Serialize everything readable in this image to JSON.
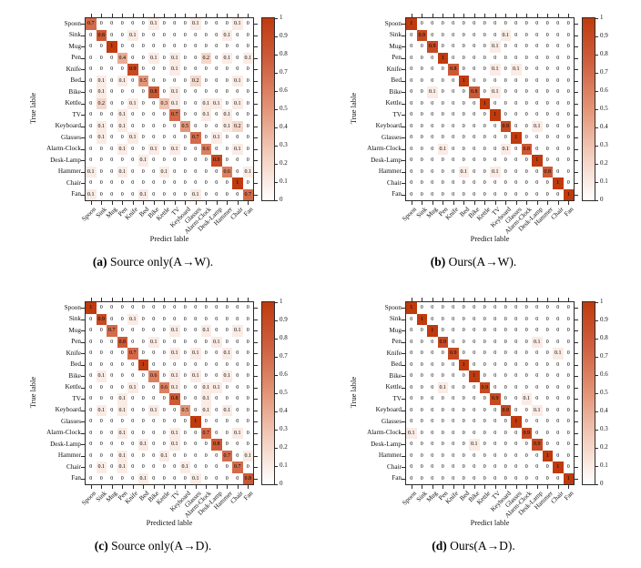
{
  "page": {
    "background": "#ffffff"
  },
  "class_labels": [
    "Spoon",
    "Sink",
    "Mug",
    "Pen",
    "Knife",
    "Bed",
    "Bike",
    "Kettle",
    "TV",
    "Keyboard",
    "Glasses",
    "Alarm-Clock",
    "Desk-Lamp",
    "Hammer",
    "Chair",
    "Fan"
  ],
  "colorbar": {
    "tick_labels": [
      "1",
      "0.9",
      "0.8",
      "0.7",
      "0.6",
      "0.5",
      "0.4",
      "0.3",
      "0.2",
      "0.1",
      "0"
    ],
    "high_color": "#bf3a0e",
    "low_color": "#ffffff"
  },
  "chart_data": [
    {
      "type": "heatmap",
      "title": "",
      "caption_bold": "(a)",
      "caption_text": "Source only(A→W).",
      "xlabel": "Predict lable",
      "ylabel": "True lable",
      "x_categories": [
        "Spoon",
        "Sink",
        "Mug",
        "Pen",
        "Knife",
        "Bed",
        "Bike",
        "Kettle",
        "TV",
        "Keyboard",
        "Glasses",
        "Alarm-Clock",
        "Desk-Lamp",
        "Hammer",
        "Chair",
        "Fan"
      ],
      "y_categories": [
        "Spoon",
        "Sink",
        "Mug",
        "Pen",
        "Knife",
        "Bed",
        "Bike",
        "Kettle",
        "TV",
        "Keyboard",
        "Glasses",
        "Alarm-Clock",
        "Desk-Lamp",
        "Hammer",
        "Chair",
        "Fan"
      ],
      "value_range": [
        0,
        1
      ],
      "matrix": [
        [
          0.7,
          0,
          0,
          0,
          0,
          0,
          0.1,
          0,
          0,
          0,
          0.1,
          0,
          0,
          0,
          0.1,
          0
        ],
        [
          0,
          0.8,
          0,
          0,
          0.1,
          0,
          0,
          0,
          0,
          0,
          0,
          0,
          0,
          0.1,
          0,
          0
        ],
        [
          0,
          0,
          1,
          0,
          0,
          0,
          0,
          0,
          0,
          0,
          0,
          0,
          0,
          0,
          0,
          0
        ],
        [
          0,
          0,
          0,
          0.4,
          0,
          0,
          0.1,
          0,
          0.1,
          0,
          0,
          0.2,
          0,
          0.1,
          0,
          0.1
        ],
        [
          0,
          0,
          0,
          0,
          0.9,
          0,
          0,
          0,
          0.1,
          0,
          0,
          0,
          0,
          0,
          0,
          0
        ],
        [
          0,
          0.1,
          0,
          0.1,
          0,
          0.5,
          0,
          0,
          0,
          0,
          0.2,
          0,
          0,
          0,
          0.1,
          0
        ],
        [
          0,
          0.1,
          0,
          0,
          0,
          0,
          0.8,
          0,
          0.1,
          0,
          0,
          0,
          0,
          0,
          0,
          0
        ],
        [
          0,
          0.2,
          0,
          0,
          0.1,
          0,
          0,
          0.3,
          0.1,
          0,
          0,
          0.1,
          0.1,
          0,
          0.1,
          0
        ],
        [
          0,
          0,
          0,
          0.1,
          0,
          0,
          0,
          0,
          0.7,
          0,
          0,
          0.1,
          0,
          0.1,
          0,
          0
        ],
        [
          0,
          0.1,
          0,
          0.1,
          0,
          0,
          0,
          0,
          0,
          0.5,
          0,
          0,
          0,
          0.1,
          0.2,
          0
        ],
        [
          0,
          0.1,
          0,
          0,
          0.1,
          0,
          0,
          0,
          0,
          0,
          0.7,
          0,
          0.1,
          0,
          0,
          0
        ],
        [
          0,
          0,
          0,
          0.1,
          0,
          0,
          0.1,
          0,
          0.1,
          0,
          0,
          0.6,
          0,
          0,
          0.1,
          0
        ],
        [
          0,
          0,
          0,
          0,
          0,
          0.1,
          0,
          0,
          0,
          0,
          0,
          0,
          0.9,
          0,
          0,
          0
        ],
        [
          0.1,
          0,
          0,
          0.1,
          0,
          0,
          0,
          0.1,
          0,
          0,
          0,
          0,
          0,
          0.6,
          0,
          0.1
        ],
        [
          0,
          0,
          0,
          0,
          0,
          0,
          0,
          0,
          0,
          0,
          0,
          0,
          0,
          0,
          1,
          0
        ],
        [
          0.1,
          0,
          0,
          0,
          0,
          0.1,
          0,
          0,
          0,
          0,
          0.1,
          0,
          0,
          0,
          0,
          0.7
        ]
      ]
    },
    {
      "type": "heatmap",
      "title": "",
      "caption_bold": "(b)",
      "caption_text": "Ours(A→W).",
      "xlabel": "Predict lable",
      "ylabel": "True lable",
      "x_categories": [
        "Spoon",
        "Sink",
        "Mug",
        "Pen",
        "Knife",
        "Bed",
        "Bike",
        "Kettle",
        "TV",
        "Keyboard",
        "Glasses",
        "Alarm-Clock",
        "Desk-Lamp",
        "Hammer",
        "Chair",
        "Fan"
      ],
      "y_categories": [
        "Spoon",
        "Sink",
        "Mug",
        "Pen",
        "Knife",
        "Bed",
        "Bike",
        "Kettle",
        "TV",
        "Keyboard",
        "Glasses",
        "Alarm-Clock",
        "Desk-Lamp",
        "Hammer",
        "Chair",
        "Fan"
      ],
      "value_range": [
        0,
        1
      ],
      "matrix": [
        [
          1,
          0,
          0,
          0,
          0,
          0,
          0,
          0,
          0,
          0,
          0,
          0,
          0,
          0,
          0,
          0
        ],
        [
          0,
          0.9,
          0,
          0,
          0,
          0,
          0,
          0,
          0,
          0.1,
          0,
          0,
          0,
          0,
          0,
          0
        ],
        [
          0,
          0,
          0.9,
          0,
          0,
          0,
          0,
          0,
          0.1,
          0,
          0,
          0,
          0,
          0,
          0,
          0
        ],
        [
          0,
          0,
          0,
          1,
          0,
          0,
          0,
          0,
          0,
          0,
          0,
          0,
          0,
          0,
          0,
          0
        ],
        [
          0,
          0,
          0,
          0,
          0.8,
          0,
          0,
          0,
          0.1,
          0,
          0.1,
          0,
          0,
          0,
          0,
          0
        ],
        [
          0,
          0,
          0,
          0,
          0,
          1,
          0,
          0,
          0,
          0,
          0,
          0,
          0,
          0,
          0,
          0
        ],
        [
          0,
          0,
          0.1,
          0,
          0,
          0,
          0.8,
          0,
          0.1,
          0,
          0,
          0,
          0,
          0,
          0,
          0
        ],
        [
          0,
          0,
          0,
          0,
          0,
          0,
          0,
          1,
          0,
          0,
          0,
          0,
          0,
          0,
          0,
          0
        ],
        [
          0,
          0,
          0,
          0,
          0,
          0,
          0,
          0,
          1,
          0,
          0,
          0,
          0,
          0,
          0,
          0
        ],
        [
          0,
          0,
          0,
          0,
          0,
          0,
          0,
          0,
          0,
          0.9,
          0,
          0,
          0.1,
          0,
          0,
          0
        ],
        [
          0,
          0,
          0,
          0,
          0,
          0,
          0,
          0,
          0,
          0,
          1,
          0,
          0,
          0,
          0,
          0
        ],
        [
          0,
          0,
          0,
          0.1,
          0,
          0,
          0,
          0,
          0,
          0.1,
          0,
          0.8,
          0,
          0,
          0,
          0
        ],
        [
          0,
          0,
          0,
          0,
          0,
          0,
          0,
          0,
          0,
          0,
          0,
          0,
          1,
          0,
          0,
          0
        ],
        [
          0,
          0,
          0,
          0,
          0,
          0.1,
          0,
          0,
          0.1,
          0,
          0,
          0,
          0,
          0.8,
          0,
          0
        ],
        [
          0,
          0,
          0,
          0,
          0,
          0,
          0,
          0,
          0,
          0,
          0,
          0,
          0,
          0,
          1,
          0
        ],
        [
          0,
          0,
          0,
          0,
          0,
          0,
          0,
          0,
          0,
          0,
          0,
          0,
          0,
          0,
          0,
          1
        ]
      ]
    },
    {
      "type": "heatmap",
      "title": "",
      "caption_bold": "(c)",
      "caption_text": "Source only(A→D).",
      "xlabel": "Predicted lable",
      "ylabel": "True lable",
      "x_categories": [
        "Spoon",
        "Sink",
        "Mug",
        "Pen",
        "Knife",
        "Bed",
        "Bike",
        "Kettle",
        "TV",
        "Keyboard",
        "Glasses",
        "Alarm-Clock",
        "Desk-Lamp",
        "Hammer",
        "Chair",
        "Fan"
      ],
      "y_categories": [
        "Spoon",
        "Sink",
        "Mug",
        "Pen",
        "Knife",
        "Bed",
        "Bike",
        "Kettle",
        "TV",
        "Keyboard",
        "Glasses",
        "Alarm-Clock",
        "Desk-Lamp",
        "Hammer",
        "Chair",
        "Fan"
      ],
      "value_range": [
        0,
        1
      ],
      "matrix": [
        [
          1,
          0,
          0,
          0,
          0,
          0,
          0,
          0,
          0,
          0,
          0,
          0,
          0,
          0,
          0,
          0
        ],
        [
          0,
          0.9,
          0,
          0,
          0.1,
          0,
          0,
          0,
          0,
          0,
          0,
          0,
          0,
          0,
          0,
          0
        ],
        [
          0,
          0,
          0.7,
          0,
          0,
          0,
          0,
          0,
          0.1,
          0,
          0,
          0.1,
          0,
          0,
          0.1,
          0
        ],
        [
          0,
          0,
          0,
          0.8,
          0,
          0,
          0.1,
          0,
          0,
          0,
          0,
          0,
          0.1,
          0,
          0,
          0
        ],
        [
          0,
          0,
          0,
          0,
          0.7,
          0,
          0,
          0,
          0.1,
          0,
          0.1,
          0,
          0,
          0.1,
          0,
          0
        ],
        [
          0,
          0,
          0,
          0,
          0,
          1,
          0,
          0,
          0,
          0,
          0,
          0,
          0,
          0,
          0,
          0
        ],
        [
          0,
          0.1,
          0,
          0,
          0,
          0,
          0.6,
          0,
          0.1,
          0,
          0.1,
          0,
          0,
          0.1,
          0,
          0
        ],
        [
          0,
          0,
          0,
          0,
          0.1,
          0,
          0,
          0.6,
          0.1,
          0,
          0,
          0.1,
          0.1,
          0,
          0,
          0
        ],
        [
          0,
          0,
          0,
          0.1,
          0,
          0,
          0,
          0,
          0.8,
          0,
          0,
          0.1,
          0,
          0,
          0,
          0
        ],
        [
          0,
          0.1,
          0,
          0.1,
          0,
          0,
          0.1,
          0,
          0,
          0.5,
          0,
          0.1,
          0,
          0.1,
          0,
          0
        ],
        [
          0,
          0,
          0,
          0,
          0,
          0,
          0,
          0,
          0,
          0,
          1,
          0,
          0,
          0,
          0,
          0
        ],
        [
          0,
          0,
          0,
          0.1,
          0,
          0,
          0,
          0,
          0.1,
          0,
          0,
          0.7,
          0,
          0,
          0.1,
          0
        ],
        [
          0,
          0,
          0,
          0,
          0,
          0.1,
          0,
          0,
          0.1,
          0,
          0,
          0,
          0.8,
          0,
          0,
          0
        ],
        [
          0,
          0,
          0,
          0.1,
          0,
          0,
          0,
          0.1,
          0,
          0,
          0,
          0,
          0,
          0.7,
          0,
          0.1
        ],
        [
          0,
          0.1,
          0,
          0.1,
          0,
          0,
          0,
          0,
          0,
          0.1,
          0,
          0,
          0,
          0,
          0.7,
          0
        ],
        [
          0,
          0,
          0,
          0,
          0,
          0.1,
          0,
          0,
          0,
          0,
          0.1,
          0,
          0,
          0,
          0,
          0.8
        ]
      ]
    },
    {
      "type": "heatmap",
      "title": "",
      "caption_bold": "(d)",
      "caption_text": "Ours(A→D).",
      "xlabel": "Predict lable",
      "ylabel": "True lable",
      "x_categories": [
        "Spoon",
        "Sink",
        "Mug",
        "Pen",
        "Knife",
        "Bed",
        "Bike",
        "Kettle",
        "TV",
        "Keyboard",
        "Glasses",
        "Alarm-Clock",
        "Desk-Lamp",
        "Hammer",
        "Chair",
        "Fan"
      ],
      "y_categories": [
        "Spoon",
        "Sink",
        "Mug",
        "Pen",
        "Knife",
        "Bed",
        "Bike",
        "Kettle",
        "TV",
        "Keyboard",
        "Glasses",
        "Alarm-Clock",
        "Desk-Lamp",
        "Hammer",
        "Chair",
        "Fan"
      ],
      "value_range": [
        0,
        1
      ],
      "matrix": [
        [
          1,
          0,
          0,
          0,
          0,
          0,
          0,
          0,
          0,
          0,
          0,
          0,
          0,
          0,
          0,
          0
        ],
        [
          0,
          1,
          0,
          0,
          0,
          0,
          0,
          0,
          0,
          0,
          0,
          0,
          0,
          0,
          0,
          0
        ],
        [
          0,
          0,
          1,
          0,
          0,
          0,
          0,
          0,
          0,
          0,
          0,
          0,
          0,
          0,
          0,
          0
        ],
        [
          0,
          0,
          0,
          0.9,
          0,
          0,
          0,
          0,
          0,
          0,
          0,
          0,
          0.1,
          0,
          0,
          0
        ],
        [
          0,
          0,
          0,
          0,
          0.9,
          0,
          0,
          0,
          0,
          0,
          0,
          0,
          0,
          0,
          0.1,
          0
        ],
        [
          0,
          0,
          0,
          0,
          0,
          1,
          0,
          0,
          0,
          0,
          0,
          0,
          0,
          0,
          0,
          0
        ],
        [
          0,
          0,
          0,
          0,
          0,
          0,
          1,
          0,
          0,
          0,
          0,
          0,
          0,
          0,
          0,
          0
        ],
        [
          0,
          0,
          0,
          0.1,
          0,
          0,
          0,
          0.9,
          0,
          0,
          0,
          0,
          0,
          0,
          0,
          0
        ],
        [
          0,
          0,
          0,
          0,
          0,
          0,
          0,
          0,
          0.9,
          0,
          0,
          0.1,
          0,
          0,
          0,
          0
        ],
        [
          0,
          0,
          0,
          0,
          0,
          0,
          0,
          0,
          0,
          0.9,
          0,
          0,
          0.1,
          0,
          0,
          0
        ],
        [
          0,
          0,
          0,
          0,
          0,
          0,
          0,
          0,
          0,
          0,
          1,
          0,
          0,
          0,
          0,
          0
        ],
        [
          0.1,
          0,
          0,
          0,
          0,
          0,
          0,
          0,
          0,
          0,
          0,
          0.9,
          0,
          0,
          0,
          0
        ],
        [
          0,
          0,
          0,
          0,
          0,
          0,
          0.1,
          0,
          0,
          0,
          0,
          0,
          0.9,
          0,
          0,
          0
        ],
        [
          0,
          0,
          0,
          0,
          0,
          0,
          0,
          0,
          0,
          0,
          0,
          0,
          0,
          1,
          0,
          0
        ],
        [
          0,
          0,
          0,
          0,
          0,
          0,
          0,
          0,
          0,
          0,
          0,
          0,
          0,
          0,
          1,
          0
        ],
        [
          0,
          0,
          0,
          0,
          0,
          0,
          0,
          0,
          0,
          0,
          0,
          0,
          0,
          0,
          0,
          1
        ]
      ]
    }
  ]
}
